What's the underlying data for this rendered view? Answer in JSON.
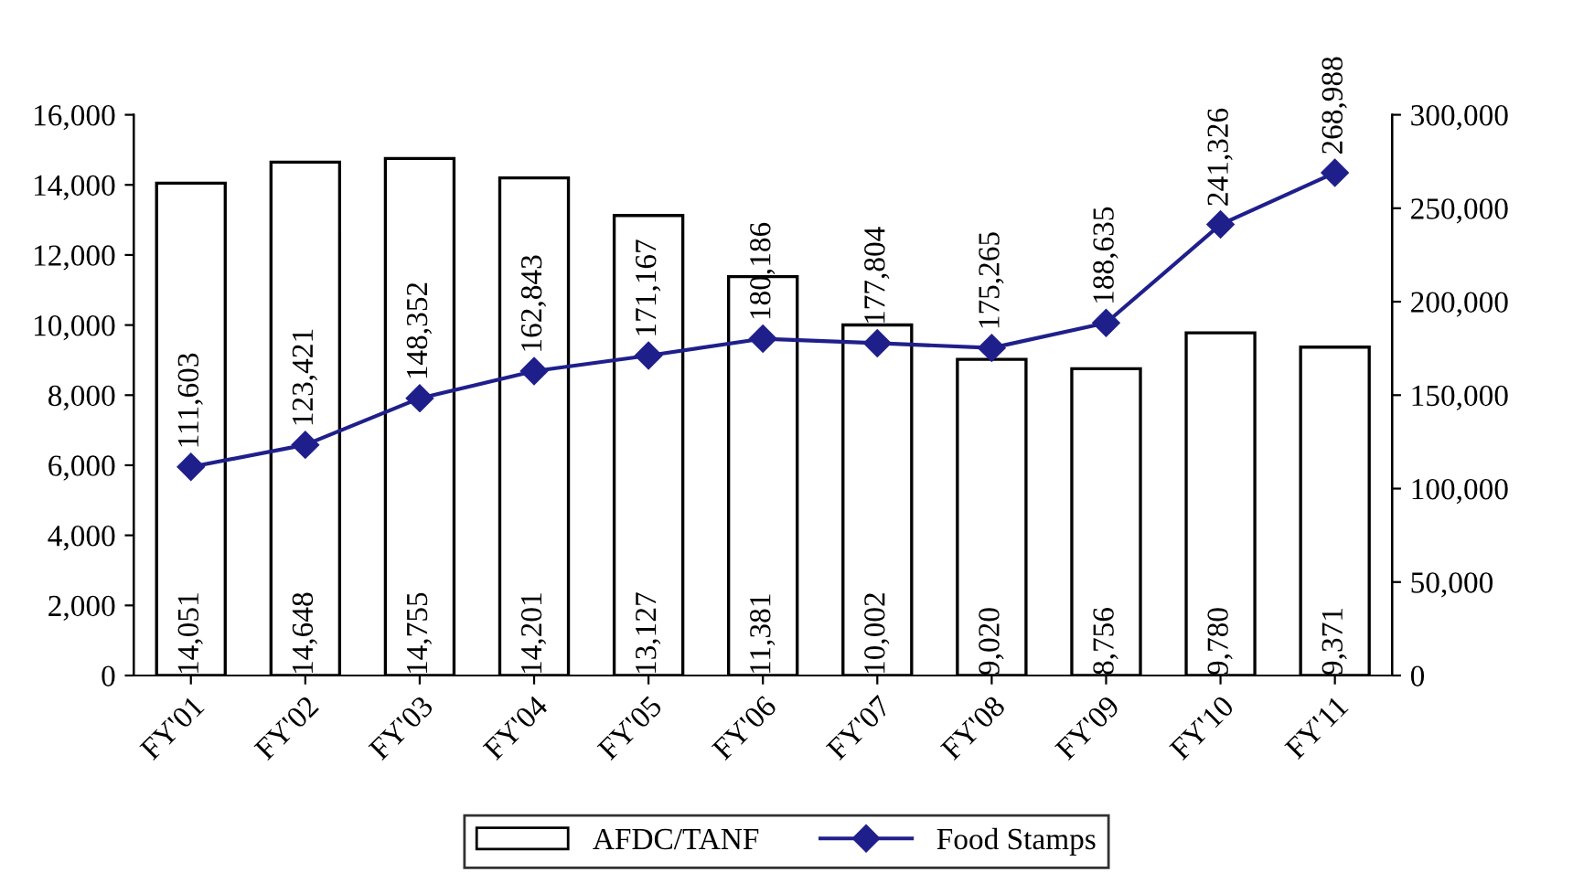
{
  "chart_data": {
    "type": "bar",
    "categories": [
      "FY'01",
      "FY'02",
      "FY'03",
      "FY'04",
      "FY'05",
      "FY'06",
      "FY'07",
      "FY'08",
      "FY'09",
      "FY'10",
      "FY'11"
    ],
    "series": [
      {
        "name": "AFDC/TANF",
        "color": "#ffffff",
        "values": [
          14051,
          14648,
          14755,
          14201,
          13127,
          11381,
          10002,
          9020,
          8756,
          9780,
          9371
        ],
        "value_labels": [
          "14,051",
          "14,648",
          "14,755",
          "14,201",
          "13,127",
          "11,381",
          "10,002",
          "9,020",
          "8,756",
          "9,780",
          "9,371"
        ]
      },
      {
        "name": "Food Stamps",
        "type": "line",
        "axis": "y2",
        "color": "#1f1f8c",
        "marker": "diamond",
        "values": [
          111603,
          123421,
          148352,
          162843,
          171167,
          180186,
          177804,
          175265,
          188635,
          241326,
          268988
        ],
        "value_labels": [
          "111,603",
          "123,421",
          "148,352",
          "162,843",
          "171,167",
          "180,186",
          "177,804",
          "175,265",
          "188,635",
          "241,326",
          "268,988"
        ]
      }
    ],
    "ylim": [
      0,
      16000
    ],
    "yticks": [
      {
        "value": 0,
        "label": "0"
      },
      {
        "value": 2000,
        "label": "2,000"
      },
      {
        "value": 4000,
        "label": "4,000"
      },
      {
        "value": 6000,
        "label": "6,000"
      },
      {
        "value": 8000,
        "label": "8,000"
      },
      {
        "value": 10000,
        "label": "10,000"
      },
      {
        "value": 12000,
        "label": "12,000"
      },
      {
        "value": 14000,
        "label": "14,000"
      },
      {
        "value": 16000,
        "label": "16,000"
      }
    ],
    "y2lim": [
      0,
      300000
    ],
    "y2ticks": [
      {
        "value": 0,
        "label": "0"
      },
      {
        "value": 50000,
        "label": "50,000"
      },
      {
        "value": 100000,
        "label": "100,000"
      },
      {
        "value": 150000,
        "label": "150,000"
      },
      {
        "value": 200000,
        "label": "200,000"
      },
      {
        "value": 250000,
        "label": "250,000"
      },
      {
        "value": 300000,
        "label": "300,000"
      }
    ],
    "grid": false,
    "legend": "bottom"
  }
}
